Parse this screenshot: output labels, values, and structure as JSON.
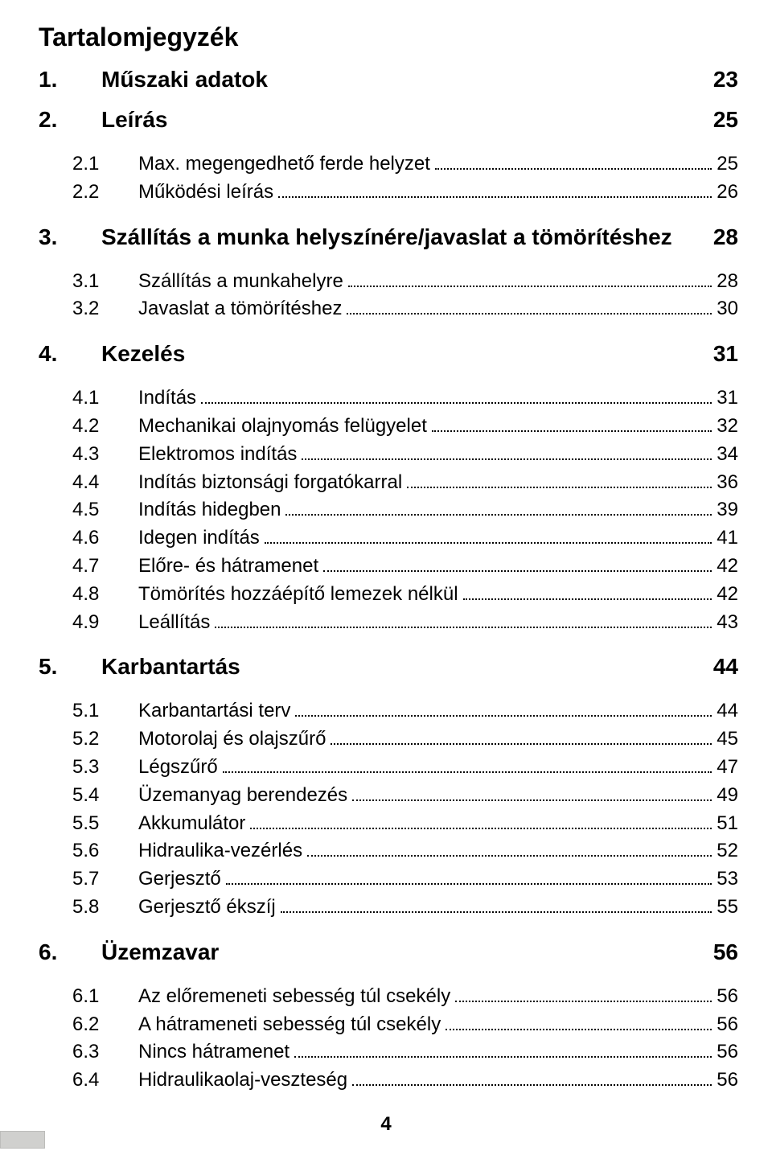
{
  "page_title": "Tartalomjegyzék",
  "footer_page_number": "4",
  "colors": {
    "text": "#000000",
    "background": "#ffffff",
    "dot_leader": "#000000",
    "footer_tab_fill": "#d0d0ce",
    "footer_tab_border": "#bcbcba"
  },
  "typography": {
    "font_family": "Arial",
    "page_title_pt": 24,
    "section_pt": 21,
    "sub_pt": 18,
    "section_weight": "bold",
    "sub_weight": "normal"
  },
  "sections": [
    {
      "num": "1.",
      "title": "Műszaki adatok",
      "page": "23",
      "subs": []
    },
    {
      "num": "2.",
      "title": "Leírás",
      "page": "25",
      "subs": [
        {
          "num": "2.1",
          "title": "Max. megengedhető ferde helyzet",
          "page": "25"
        },
        {
          "num": "2.2",
          "title": "Működési leírás",
          "page": "26"
        }
      ]
    },
    {
      "num": "3.",
      "title": "Szállítás a munka helyszínére/javaslat a tömörítéshez",
      "page": "28",
      "subs": [
        {
          "num": "3.1",
          "title": "Szállítás a munkahelyre",
          "page": "28"
        },
        {
          "num": "3.2",
          "title": "Javaslat a tömörítéshez",
          "page": "30"
        }
      ]
    },
    {
      "num": "4.",
      "title": "Kezelés",
      "page": "31",
      "subs": [
        {
          "num": "4.1",
          "title": "Indítás",
          "page": "31"
        },
        {
          "num": "4.2",
          "title": "Mechanikai olajnyomás felügyelet",
          "page": "32"
        },
        {
          "num": "4.3",
          "title": "Elektromos indítás",
          "page": "34"
        },
        {
          "num": "4.4",
          "title": "Indítás biztonsági forgatókarral",
          "page": "36"
        },
        {
          "num": "4.5",
          "title": "Indítás hidegben",
          "page": "39"
        },
        {
          "num": "4.6",
          "title": "Idegen indítás",
          "page": "41"
        },
        {
          "num": "4.7",
          "title": "Előre- és hátramenet",
          "page": "42"
        },
        {
          "num": "4.8",
          "title": "Tömörítés hozzáépítő lemezek nélkül",
          "page": "42"
        },
        {
          "num": "4.9",
          "title": "Leállítás",
          "page": "43"
        }
      ]
    },
    {
      "num": "5.",
      "title": "Karbantartás",
      "page": "44",
      "subs": [
        {
          "num": "5.1",
          "title": "Karbantartási terv",
          "page": "44"
        },
        {
          "num": "5.2",
          "title": "Motorolaj és olajszűrő",
          "page": "45"
        },
        {
          "num": "5.3",
          "title": "Légszűrő",
          "page": "47"
        },
        {
          "num": "5.4",
          "title": "Üzemanyag berendezés",
          "page": "49"
        },
        {
          "num": "5.5",
          "title": "Akkumulátor",
          "page": "51"
        },
        {
          "num": "5.6",
          "title": "Hidraulika-vezérlés",
          "page": "52"
        },
        {
          "num": "5.7",
          "title": "Gerjesztő",
          "page": "53"
        },
        {
          "num": "5.8",
          "title": "Gerjesztő ékszíj",
          "page": "55"
        }
      ]
    },
    {
      "num": "6.",
      "title": "Üzemzavar",
      "page": "56",
      "subs": [
        {
          "num": "6.1",
          "title": "Az előremeneti sebesség túl csekély",
          "page": "56"
        },
        {
          "num": "6.2",
          "title": "A hátrameneti sebesség túl csekély",
          "page": "56"
        },
        {
          "num": "6.3",
          "title": "Nincs hátramenet",
          "page": "56"
        },
        {
          "num": "6.4",
          "title": "Hidraulikaolaj-veszteség",
          "page": "56"
        }
      ]
    }
  ]
}
